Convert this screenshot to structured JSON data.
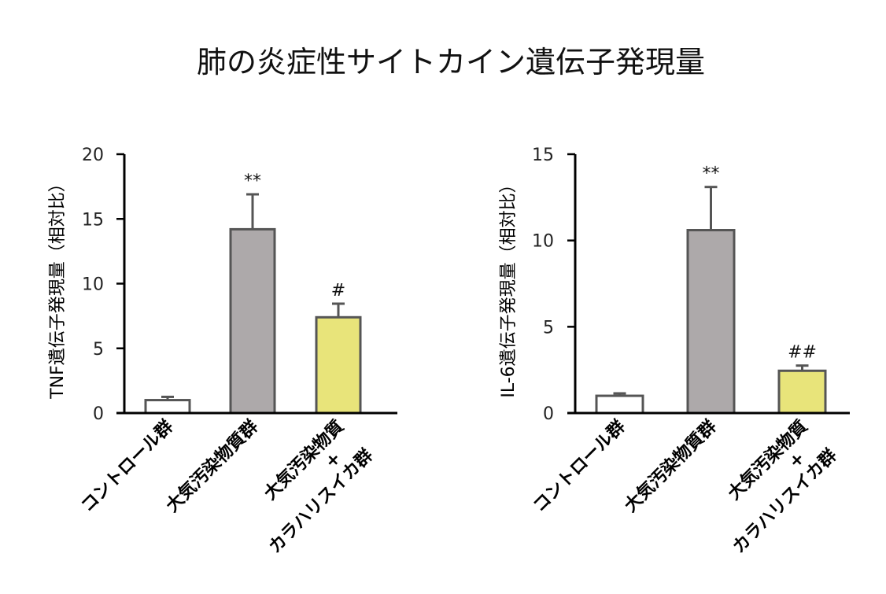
{
  "title": "肺の炎症性サイトカイン遺伝子発現量",
  "colors": {
    "control_fill": "#ffffff",
    "pollutant_fill": "#ada9aa",
    "watermelon_fill": "#e8e47a",
    "bar_stroke": "#555555",
    "axis": "#000000"
  },
  "chart_data": [
    {
      "type": "bar",
      "title": "",
      "xlabel": "",
      "ylabel": "TNF遺伝子発現量（相対比）",
      "ylim": [
        0,
        20
      ],
      "yticks": [
        0,
        5,
        10,
        15,
        20
      ],
      "grid": false,
      "categories": [
        "コントロール群",
        "大気汚染物質群",
        "大気汚染物質＋カラハリスイカ群"
      ],
      "category_lines": [
        [
          "コントロール群"
        ],
        [
          "大気汚染物質群"
        ],
        [
          "大気汚染物質",
          "+",
          "カラハリスイカ群"
        ]
      ],
      "values": [
        1.0,
        14.2,
        7.4
      ],
      "error": [
        0.25,
        2.7,
        1.05
      ],
      "annotations": [
        "",
        "**",
        "#"
      ],
      "fill_colors": [
        "#ffffff",
        "#ada9aa",
        "#e8e47a"
      ]
    },
    {
      "type": "bar",
      "title": "",
      "xlabel": "",
      "ylabel": "IL-6遺伝子発現量（相対比）",
      "ylim": [
        0,
        15
      ],
      "yticks": [
        0,
        5,
        10,
        15
      ],
      "grid": false,
      "categories": [
        "コントロール群",
        "大気汚染物質群",
        "大気汚染物質＋カラハリスイカ群"
      ],
      "category_lines": [
        [
          "コントロール群"
        ],
        [
          "大気汚染物質群"
        ],
        [
          "大気汚染物質",
          "+",
          "カラハリスイカ群"
        ]
      ],
      "values": [
        1.0,
        10.6,
        2.45
      ],
      "error": [
        0.14,
        2.5,
        0.3
      ],
      "annotations": [
        "",
        "**",
        "##"
      ],
      "fill_colors": [
        "#ffffff",
        "#ada9aa",
        "#e8e47a"
      ]
    }
  ]
}
